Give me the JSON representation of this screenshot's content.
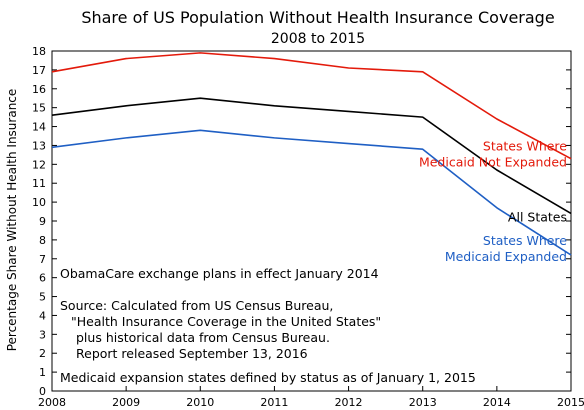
{
  "chart_data": {
    "type": "line",
    "title": "Share of US Population Without Health Insurance Coverage",
    "subtitle": "2008 to 2015",
    "xlabel": "",
    "ylabel": "Percentage Share Without Health Insurance",
    "x": [
      2008,
      2009,
      2010,
      2011,
      2012,
      2013,
      2014,
      2015
    ],
    "xlim": [
      2008,
      2015
    ],
    "ylim": [
      0,
      18
    ],
    "yticks": [
      0,
      1,
      2,
      3,
      4,
      5,
      6,
      7,
      8,
      9,
      10,
      11,
      12,
      13,
      14,
      15,
      16,
      17,
      18
    ],
    "grid": false,
    "legend": "none",
    "series": [
      {
        "name": "States Where Medicaid Not Expanded",
        "label_lines": [
          "States Where",
          "Medicaid Not Expanded"
        ],
        "color": "#e31a0b",
        "values": [
          16.9,
          17.6,
          17.9,
          17.6,
          17.1,
          16.9,
          14.4,
          12.3
        ]
      },
      {
        "name": "All States",
        "label_lines": [
          "All States"
        ],
        "color": "#000000",
        "values": [
          14.6,
          15.1,
          15.5,
          15.1,
          14.8,
          14.5,
          11.7,
          9.4
        ]
      },
      {
        "name": "States Where Medicaid Expanded",
        "label_lines": [
          "States Where",
          "Medicaid Expanded"
        ],
        "color": "#1f5fc4",
        "values": [
          12.9,
          13.4,
          13.8,
          13.4,
          13.1,
          12.8,
          9.7,
          7.2
        ]
      }
    ],
    "annotations": {
      "exchange_note": "ObamaCare exchange plans in effect January 2014",
      "source_lines": [
        "Source:  Calculated from US Census Bureau,",
        "\"Health Insurance Coverage in the United States\"",
        "plus historical data from Census Bureau.",
        "Report released September 13, 2016"
      ],
      "expansion_note": "Medicaid expansion states defined by status as of January 1, 2015"
    }
  }
}
